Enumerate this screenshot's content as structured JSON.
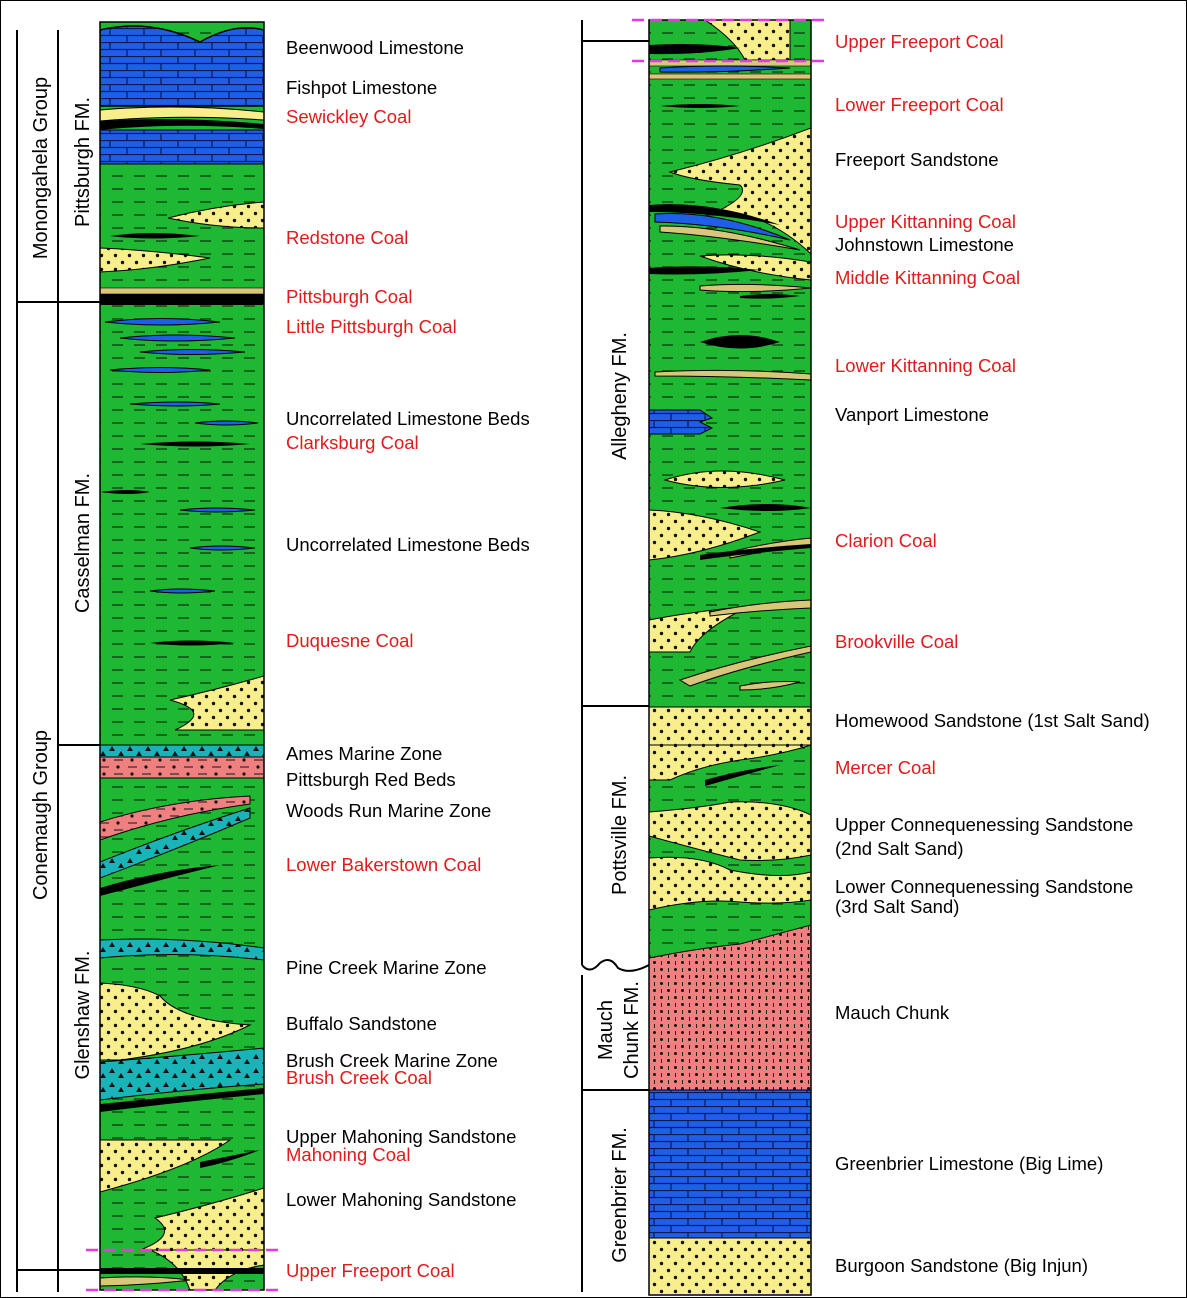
{
  "colors": {
    "shale": "#1fb832",
    "limestone": "#1f5fe8",
    "sandstone": "#f8ef8c",
    "coal": "#000000",
    "red_beds": "#f08080",
    "marine": "#19b3b8",
    "coal_label": "#e01b1b",
    "rock_label": "#000000",
    "boundary": "#e23be0"
  },
  "left_column": {
    "groups": [
      "Monongahela Group",
      "Conemaugh Group"
    ],
    "formations": [
      "Pittsburgh FM.",
      "Casselman FM.",
      "Glenshaw FM."
    ],
    "labels": [
      {
        "text": "Beenwood Limestone",
        "kind": "rock"
      },
      {
        "text": "Fishpot Limestone",
        "kind": "rock"
      },
      {
        "text": "Sewickley Coal",
        "kind": "coal"
      },
      {
        "text": "Redstone Coal",
        "kind": "coal"
      },
      {
        "text": "Pittsburgh Coal",
        "kind": "coal"
      },
      {
        "text": "Little Pittsburgh Coal",
        "kind": "coal"
      },
      {
        "text": "Uncorrelated Limestone Beds",
        "kind": "rock"
      },
      {
        "text": "Clarksburg Coal",
        "kind": "coal"
      },
      {
        "text": "Uncorrelated Limestone Beds",
        "kind": "rock"
      },
      {
        "text": "Duquesne Coal",
        "kind": "coal"
      },
      {
        "text": "Ames Marine Zone",
        "kind": "rock"
      },
      {
        "text": "Pittsburgh Red Beds",
        "kind": "rock"
      },
      {
        "text": "Woods Run Marine Zone",
        "kind": "rock"
      },
      {
        "text": "Lower Bakerstown Coal",
        "kind": "coal"
      },
      {
        "text": "Pine Creek Marine Zone",
        "kind": "rock"
      },
      {
        "text": "Buffalo Sandstone",
        "kind": "rock"
      },
      {
        "text": "Brush Creek Marine Zone",
        "kind": "rock"
      },
      {
        "text": "Brush Creek Coal",
        "kind": "coal"
      },
      {
        "text": "Upper Mahoning Sandstone",
        "kind": "rock"
      },
      {
        "text": "Mahoning Coal",
        "kind": "coal"
      },
      {
        "text": "Lower Mahoning Sandstone",
        "kind": "rock"
      },
      {
        "text": "Upper Freeport Coal",
        "kind": "coal"
      }
    ]
  },
  "right_column": {
    "formations": [
      "Allegheny FM.",
      "Pottsville FM.",
      "Mauch",
      "Chunk FM.",
      "Greenbrier FM."
    ],
    "labels": [
      {
        "text": "Upper Freeport Coal",
        "kind": "coal"
      },
      {
        "text": "Lower Freeport Coal",
        "kind": "coal"
      },
      {
        "text": "Freeport Sandstone",
        "kind": "rock"
      },
      {
        "text": "Upper Kittanning Coal",
        "kind": "coal"
      },
      {
        "text": "Johnstown Limestone",
        "kind": "rock"
      },
      {
        "text": "Middle Kittanning Coal",
        "kind": "coal"
      },
      {
        "text": "Lower Kittanning Coal",
        "kind": "coal"
      },
      {
        "text": "Vanport Limestone",
        "kind": "rock"
      },
      {
        "text": "Clarion Coal",
        "kind": "coal"
      },
      {
        "text": "Brookville Coal",
        "kind": "coal"
      },
      {
        "text": "Homewood Sandstone (1st Salt Sand)",
        "kind": "rock"
      },
      {
        "text": "Mercer Coal",
        "kind": "coal"
      },
      {
        "text": "Upper Connequenessing Sandstone",
        "kind": "rock"
      },
      {
        "text": "(2nd Salt Sand)",
        "kind": "rock"
      },
      {
        "text": "Lower Connequenessing Sandstone",
        "kind": "rock"
      },
      {
        "text": "(3rd Salt Sand)",
        "kind": "rock"
      },
      {
        "text": "Mauch Chunk",
        "kind": "rock"
      },
      {
        "text": "Greenbrier Limestone (Big Lime)",
        "kind": "rock"
      },
      {
        "text": "Burgoon Sandstone (Big Injun)",
        "kind": "rock"
      }
    ]
  }
}
